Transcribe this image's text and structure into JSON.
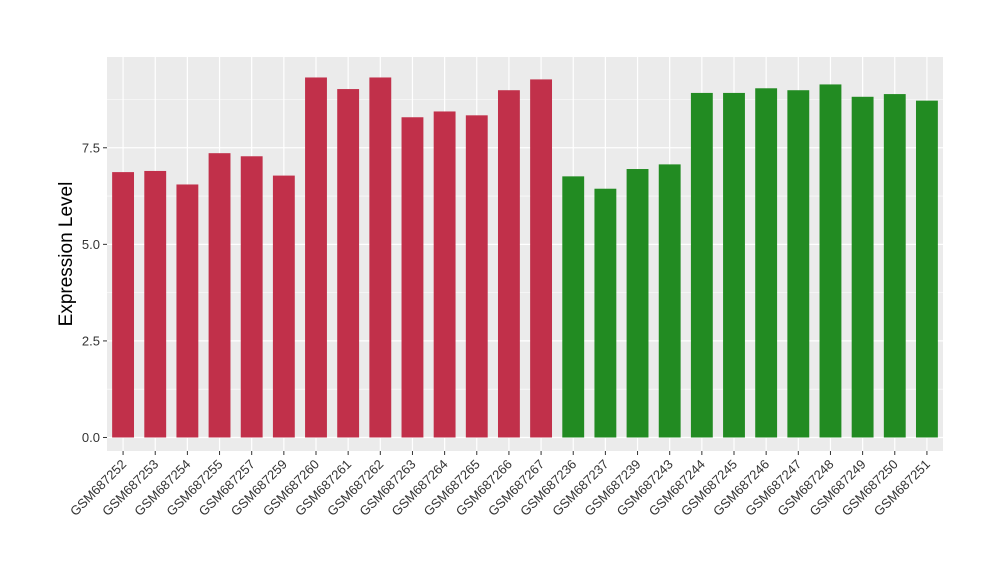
{
  "chart_data": {
    "type": "bar",
    "ylabel": "Expression Level",
    "xlabel": "",
    "ylim": [
      -0.35,
      9.85
    ],
    "yticks": [
      0.0,
      2.5,
      5.0,
      7.5
    ],
    "ytick_labels": [
      "0.0",
      "2.5",
      "5.0",
      "7.5"
    ],
    "grid": true,
    "categories": [
      "GSM687252",
      "GSM687253",
      "GSM687254",
      "GSM687255",
      "GSM687257",
      "GSM687259",
      "GSM687260",
      "GSM687261",
      "GSM687262",
      "GSM687263",
      "GSM687264",
      "GSM687265",
      "GSM687266",
      "GSM687267",
      "GSM687236",
      "GSM687237",
      "GSM687239",
      "GSM687243",
      "GSM687244",
      "GSM687245",
      "GSM687246",
      "GSM687247",
      "GSM687248",
      "GSM687249",
      "GSM687250",
      "GSM687251"
    ],
    "values": [
      6.87,
      6.9,
      6.55,
      7.36,
      7.28,
      6.78,
      9.32,
      9.02,
      9.32,
      8.29,
      8.44,
      8.34,
      8.99,
      9.27,
      6.76,
      6.44,
      6.95,
      7.07,
      8.92,
      8.92,
      9.04,
      8.99,
      9.14,
      8.82,
      8.89,
      8.72
    ],
    "bar_colors": [
      "#C1304A",
      "#C1304A",
      "#C1304A",
      "#C1304A",
      "#C1304A",
      "#C1304A",
      "#C1304A",
      "#C1304A",
      "#C1304A",
      "#C1304A",
      "#C1304A",
      "#C1304A",
      "#C1304A",
      "#C1304A",
      "#228B22",
      "#228B22",
      "#228B22",
      "#228B22",
      "#228B22",
      "#228B22",
      "#228B22",
      "#228B22",
      "#228B22",
      "#228B22",
      "#228B22",
      "#228B22"
    ],
    "panel_background": "#EBEBEB",
    "grid_color": "#FFFFFF"
  }
}
